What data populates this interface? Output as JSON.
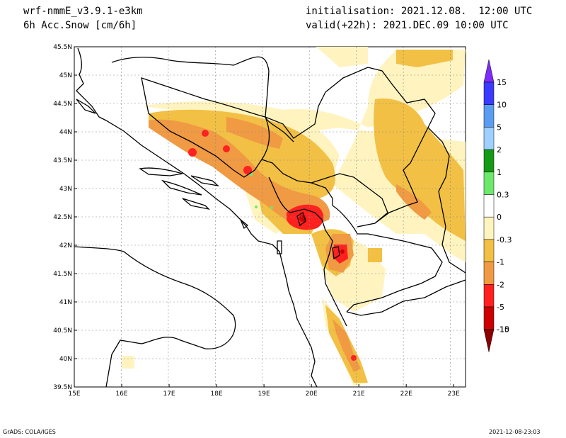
{
  "header": {
    "model": "wrf-nmmE_v3.9.1-e3km",
    "field": "6h Acc.Snow [cm/6h]",
    "init": "initialisation: 2021.12.08.  12:00 UTC",
    "valid": "valid(+22h): 2021.DEC.09 10:00 UTC"
  },
  "map": {
    "lon_labels": [
      "15E",
      "16E",
      "17E",
      "18E",
      "19E",
      "20E",
      "21E",
      "22E",
      "23E"
    ],
    "lat_labels": [
      "45.5N",
      "45N",
      "44.5N",
      "44N",
      "43.5N",
      "43N",
      "42.5N",
      "42N",
      "41.5N",
      "41N",
      "40.5N",
      "40N",
      "39.5N"
    ],
    "lon_range": [
      15,
      23.25
    ],
    "lat_range": [
      39.5,
      45.5
    ]
  },
  "colorbar": {
    "labels": [
      "15",
      "10",
      "5",
      "2",
      "1",
      "0.3",
      "0",
      "-0.3",
      "-1",
      "-2",
      "-5",
      "-10",
      "-15"
    ],
    "colors": [
      "#7d2bff",
      "#3b3bff",
      "#5a9cf0",
      "#9fd0ff",
      "#159a15",
      "#6de86d",
      "#ffffff",
      "#fff4c0",
      "#f2c044",
      "#f09a44",
      "#ff2020",
      "#cc0000",
      "#8b0000"
    ]
  },
  "footer": {
    "left": "GrADS: COLA/IGES",
    "right": "2021-12-08-23:03"
  }
}
